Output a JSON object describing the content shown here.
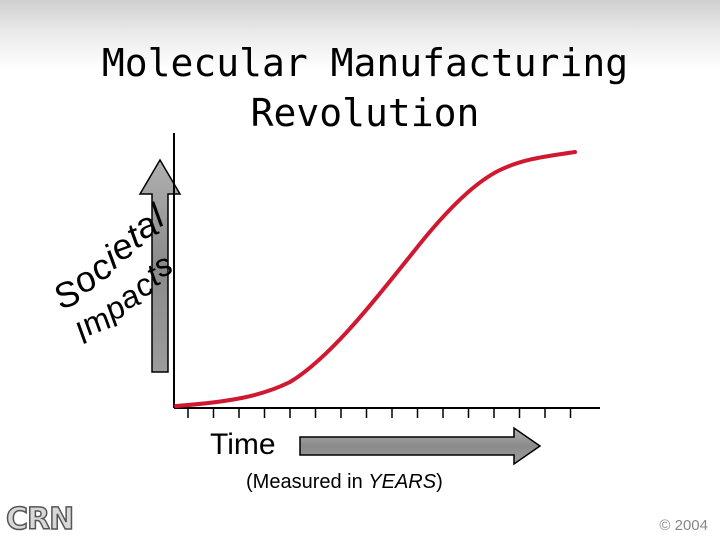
{
  "title": "Molecular Manufacturing Revolution",
  "y_label": {
    "line1": [
      "S",
      "o",
      "c",
      "i",
      "e",
      "t",
      "a",
      "l"
    ],
    "line2": [
      "I",
      "m",
      "p",
      "a",
      "c",
      "t",
      "s"
    ]
  },
  "x_label": "Time",
  "x_sublabel": {
    "prefix": "(Measured in ",
    "emphasis": "YEARS",
    "suffix": ")"
  },
  "x_tick_count": 16,
  "curve_color": "#d01830",
  "arrow_fill": "#8f8f8f",
  "logo_text": "CRN",
  "copyright": "© 2004"
}
